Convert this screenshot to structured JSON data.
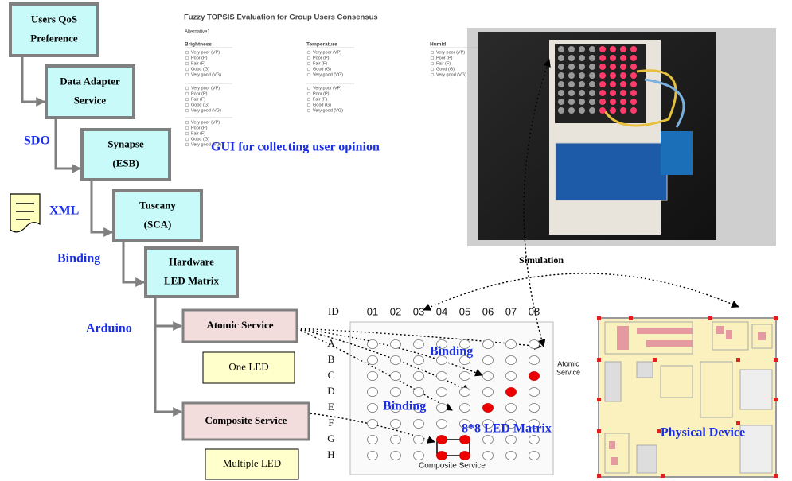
{
  "nodes": [
    {
      "lines": [
        "Users QoS",
        "Preference"
      ]
    },
    {
      "lines": [
        "Data Adapter",
        "Service"
      ]
    },
    {
      "lines": [
        "Synapse",
        "(ESB)"
      ]
    },
    {
      "lines": [
        "Tuscany",
        "(SCA)"
      ]
    },
    {
      "lines": [
        "Hardware",
        "LED Matrix"
      ]
    },
    {
      "lines": [
        "Atomic Service"
      ]
    },
    {
      "lines": [
        "One LED"
      ]
    },
    {
      "lines": [
        "Composite Service"
      ]
    },
    {
      "lines": [
        "Multiple LED"
      ]
    }
  ],
  "side_labels": [
    "SDO",
    "XML",
    "Binding",
    "Arduino"
  ],
  "gui": {
    "title": "Fuzzy TOPSIS Evaluation for Group Users Consensus",
    "subtitle": "Alternative1",
    "columns": [
      "Brightness",
      "Temperature",
      "Humid"
    ],
    "options": [
      "Very poor (VP)",
      "Poor (P)",
      "Fair (F)",
      "Good (G)",
      "Very good (VG)"
    ],
    "caption": "GUI for collecting user opinion"
  },
  "simulation": "Simulation",
  "matrix": {
    "id_label": "ID",
    "columns": [
      "01",
      "02",
      "03",
      "04",
      "05",
      "06",
      "07",
      "08"
    ],
    "rows": [
      "A",
      "B",
      "C",
      "D",
      "E",
      "F",
      "G",
      "H"
    ],
    "atomic_note": [
      "Atomic",
      "Service"
    ],
    "binding_labels": [
      "Binding",
      "Binding"
    ],
    "title": "8*8 LED Matrix",
    "composite_note": "Composite Service"
  },
  "physical_device": "Physical Device"
}
